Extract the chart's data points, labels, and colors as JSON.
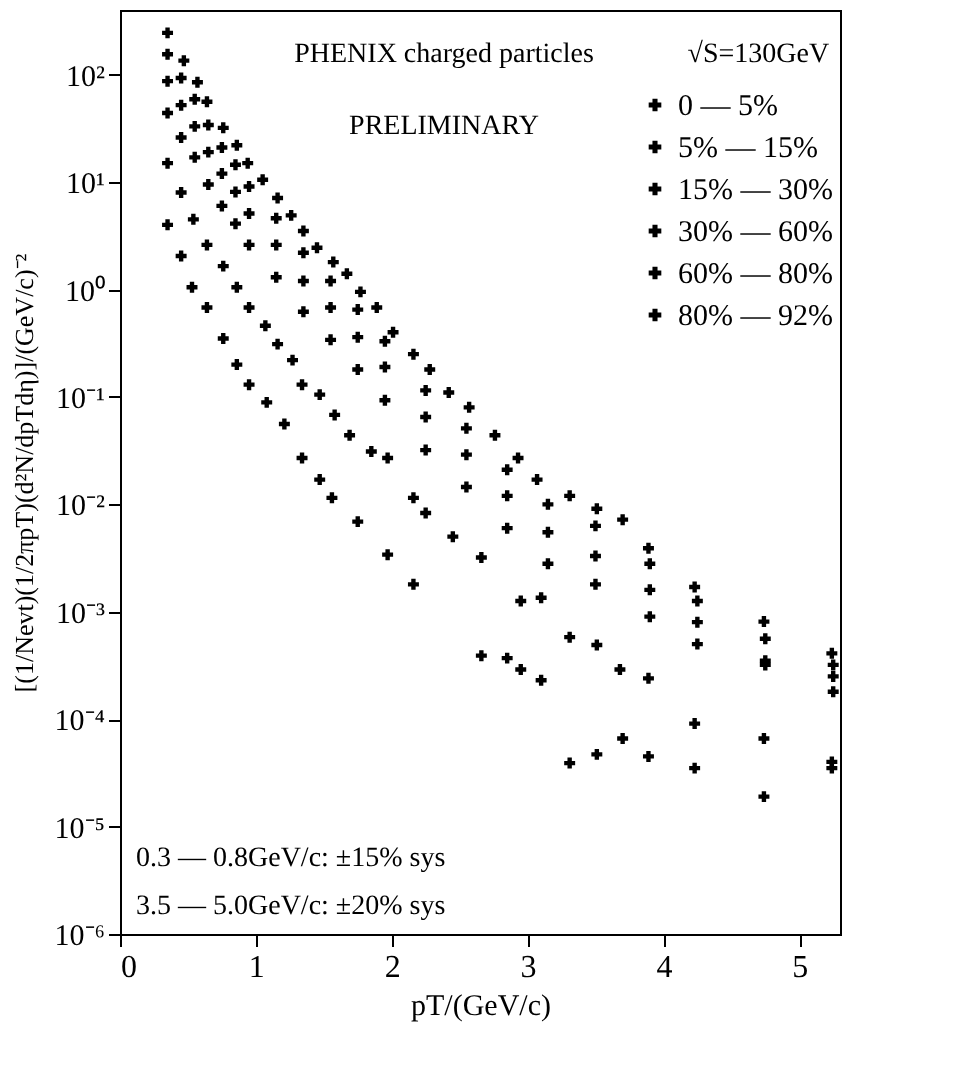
{
  "chart_data": {
    "type": "scatter",
    "xlabel": "pT/(GeV/c)",
    "ylabel": "[(1/Nevt)(1/2πpT)(d²N/dpTdη)]/(GeV/c)⁻²",
    "annotations": [
      "PHENIX charged particles",
      "√S=130GeV",
      "PRELIMINARY",
      "0.3 — 0.8GeV/c: ±15% sys",
      "3.5 — 5.0GeV/c: ±20% sys"
    ],
    "log": "y",
    "grid": false,
    "legend": "top right",
    "marker": "cross",
    "xlim": [
      0,
      5.3
    ],
    "xticks": [
      0,
      1,
      2,
      3,
      4,
      5
    ],
    "ylim": [
      1e-06,
      400
    ],
    "yticks": [
      {
        "value": 1e-06,
        "label": "10⁻⁶"
      },
      {
        "value": 1e-05,
        "label": "10⁻⁵"
      },
      {
        "value": 0.0001,
        "label": "10⁻⁴"
      },
      {
        "value": 0.001,
        "label": "10⁻³"
      },
      {
        "value": 0.01,
        "label": "10⁻²"
      },
      {
        "value": 0.1,
        "label": "10⁻¹"
      },
      {
        "value": 1,
        "label": "10⁰"
      },
      {
        "value": 10,
        "label": "10¹"
      },
      {
        "value": 100,
        "label": "10²"
      }
    ],
    "series": [
      {
        "name": "0 — 5%",
        "color": "#000000",
        "x": [
          0.35,
          0.47,
          0.57,
          0.64,
          0.76,
          0.86,
          0.94,
          1.05,
          1.16,
          1.26,
          1.35,
          1.45,
          1.57,
          1.67,
          1.77,
          1.89,
          2.01,
          2.16,
          2.28,
          2.42,
          2.57,
          2.76,
          2.93,
          3.07,
          3.31,
          3.51,
          3.7,
          3.89,
          4.23,
          4.74,
          5.24
        ],
        "values": [
          245,
          135,
          85,
          56,
          32,
          22,
          15,
          10.5,
          7.1,
          4.9,
          3.5,
          2.45,
          1.8,
          1.4,
          0.95,
          0.68,
          0.4,
          0.25,
          0.18,
          0.11,
          0.08,
          0.044,
          0.027,
          0.017,
          0.012,
          0.0091,
          0.0072,
          0.0039,
          0.0017,
          0.00081,
          0.00041
        ]
      },
      {
        "name": "5% — 15%",
        "color": "#000000",
        "x": [
          0.35,
          0.45,
          0.55,
          0.65,
          0.75,
          0.85,
          0.95,
          1.15,
          1.35,
          1.55,
          1.75,
          1.95,
          2.25,
          2.55,
          2.85,
          3.15,
          3.5,
          3.9,
          4.25,
          4.75,
          5.25
        ],
        "values": [
          155,
          93,
          59,
          34,
          21,
          14.5,
          9.1,
          4.6,
          2.2,
          1.2,
          0.65,
          0.33,
          0.115,
          0.051,
          0.021,
          0.01,
          0.0063,
          0.0028,
          0.00126,
          0.00056,
          0.00032
        ]
      },
      {
        "name": "15% — 30%",
        "color": "#000000",
        "x": [
          0.35,
          0.45,
          0.55,
          0.65,
          0.75,
          0.85,
          0.95,
          1.15,
          1.35,
          1.55,
          1.75,
          1.95,
          2.25,
          2.55,
          2.85,
          3.15,
          3.5,
          3.9,
          4.25,
          4.75,
          5.25
        ],
        "values": [
          87,
          52,
          33,
          19,
          12,
          8.1,
          5.1,
          2.6,
          1.2,
          0.68,
          0.36,
          0.19,
          0.065,
          0.029,
          0.012,
          0.0055,
          0.0033,
          0.0016,
          0.0008,
          0.00035,
          0.00025
        ]
      },
      {
        "name": "30% — 60%",
        "color": "#000000",
        "x": [
          0.35,
          0.45,
          0.55,
          0.65,
          0.75,
          0.85,
          0.95,
          1.15,
          1.35,
          1.55,
          1.75,
          1.95,
          2.25,
          2.55,
          2.85,
          3.15,
          3.5,
          3.9,
          4.25,
          4.75,
          5.25
        ],
        "values": [
          44,
          26,
          17,
          9.5,
          6,
          4.1,
          2.6,
          1.3,
          0.62,
          0.34,
          0.18,
          0.093,
          0.032,
          0.0145,
          0.006,
          0.0028,
          0.0018,
          0.0009,
          0.0005,
          0.00032,
          0.00018
        ]
      },
      {
        "name": "60% — 80%",
        "color": "#000000",
        "x": [
          0.35,
          0.45,
          0.54,
          0.64,
          0.76,
          0.86,
          0.95,
          1.07,
          1.16,
          1.27,
          1.34,
          1.47,
          1.58,
          1.69,
          1.85,
          1.97,
          2.16,
          2.25,
          2.45,
          2.66,
          2.95,
          3.1,
          3.31,
          3.51,
          3.68,
          3.89,
          4.23,
          4.74,
          5.24
        ],
        "values": [
          15,
          8,
          4.5,
          2.6,
          1.65,
          1.05,
          0.68,
          0.46,
          0.31,
          0.22,
          0.13,
          0.105,
          0.068,
          0.044,
          0.031,
          0.027,
          0.0115,
          0.0083,
          0.005,
          0.0032,
          0.00126,
          0.00135,
          0.00058,
          0.00049,
          0.00029,
          0.00024,
          9.1e-05,
          6.6e-05,
          4e-05
        ]
      },
      {
        "name": "80% — 92%",
        "color": "#000000",
        "x": [
          0.35,
          0.45,
          0.53,
          0.64,
          0.76,
          0.86,
          0.95,
          1.08,
          1.21,
          1.34,
          1.47,
          1.56,
          1.75,
          1.97,
          2.16,
          2.66,
          2.85,
          2.95,
          3.1,
          3.31,
          3.51,
          3.7,
          3.89,
          4.23,
          4.74,
          5.24
        ],
        "values": [
          4,
          2.05,
          1.05,
          0.68,
          0.35,
          0.2,
          0.13,
          0.089,
          0.056,
          0.027,
          0.017,
          0.0115,
          0.0069,
          0.0034,
          0.0018,
          0.00039,
          0.00037,
          0.00029,
          0.00023,
          3.9e-05,
          4.7e-05,
          6.6e-05,
          4.5e-05,
          3.5e-05,
          1.9e-05,
          3.5e-05
        ]
      }
    ]
  }
}
